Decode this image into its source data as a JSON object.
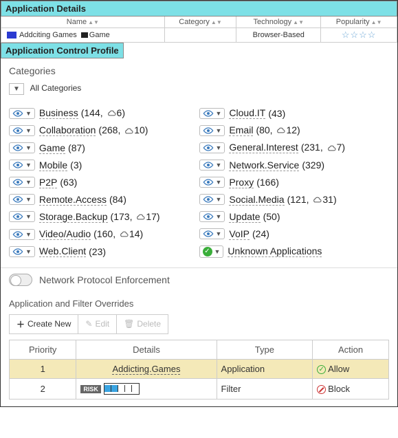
{
  "app_details": {
    "header": "Application Details",
    "columns": {
      "name": "Name",
      "category": "Category",
      "technology": "Technology",
      "popularity": "Popularity"
    },
    "row": {
      "name": "Addciting Games",
      "category": "Game",
      "technology": "Browser-Based",
      "popularity_stars": 4,
      "color": "#2b3bd1"
    }
  },
  "profile": {
    "header": "Application Control Profile",
    "categories_title": "Categories",
    "all_categories_label": "All Categories",
    "left": [
      {
        "name": "Business",
        "count": 144,
        "cloud": 6
      },
      {
        "name": "Collaboration",
        "count": 268,
        "cloud": 10
      },
      {
        "name": "Game",
        "count": 87
      },
      {
        "name": "Mobile",
        "count": 3
      },
      {
        "name": "P2P",
        "count": 63
      },
      {
        "name": "Remote.Access",
        "count": 84
      },
      {
        "name": "Storage.Backup",
        "count": 173,
        "cloud": 17
      },
      {
        "name": "Video/Audio",
        "count": 160,
        "cloud": 14
      },
      {
        "name": "Web.Client",
        "count": 23
      }
    ],
    "right": [
      {
        "name": "Cloud.IT",
        "count": 43
      },
      {
        "name": "Email",
        "count": 80,
        "cloud": 12
      },
      {
        "name": "General.Interest",
        "count": 231,
        "cloud": 7
      },
      {
        "name": "Network.Service",
        "count": 329
      },
      {
        "name": "Proxy",
        "count": 166
      },
      {
        "name": "Social.Media",
        "count": 121,
        "cloud": 31
      },
      {
        "name": "Update",
        "count": 50
      },
      {
        "name": "VoIP",
        "count": 24
      },
      {
        "name": "Unknown Applications",
        "unknown": true
      }
    ],
    "npe_label": "Network Protocol Enforcement",
    "overrides_title": "Application and Filter Overrides",
    "toolbar": {
      "create": "Create New",
      "edit": "Edit",
      "delete": "Delete"
    },
    "ov_columns": {
      "priority": "Priority",
      "details": "Details",
      "type": "Type",
      "action": "Action"
    },
    "ov_rows": [
      {
        "priority": 1,
        "details": "Addicting.Games",
        "type": "Application",
        "action": "Allow",
        "selected": true
      },
      {
        "priority": 2,
        "details_kind": "risk",
        "risk_level": 2,
        "type": "Filter",
        "action": "Block"
      }
    ],
    "risk_label": "RISK",
    "risk_color": "#3aa3e0"
  }
}
